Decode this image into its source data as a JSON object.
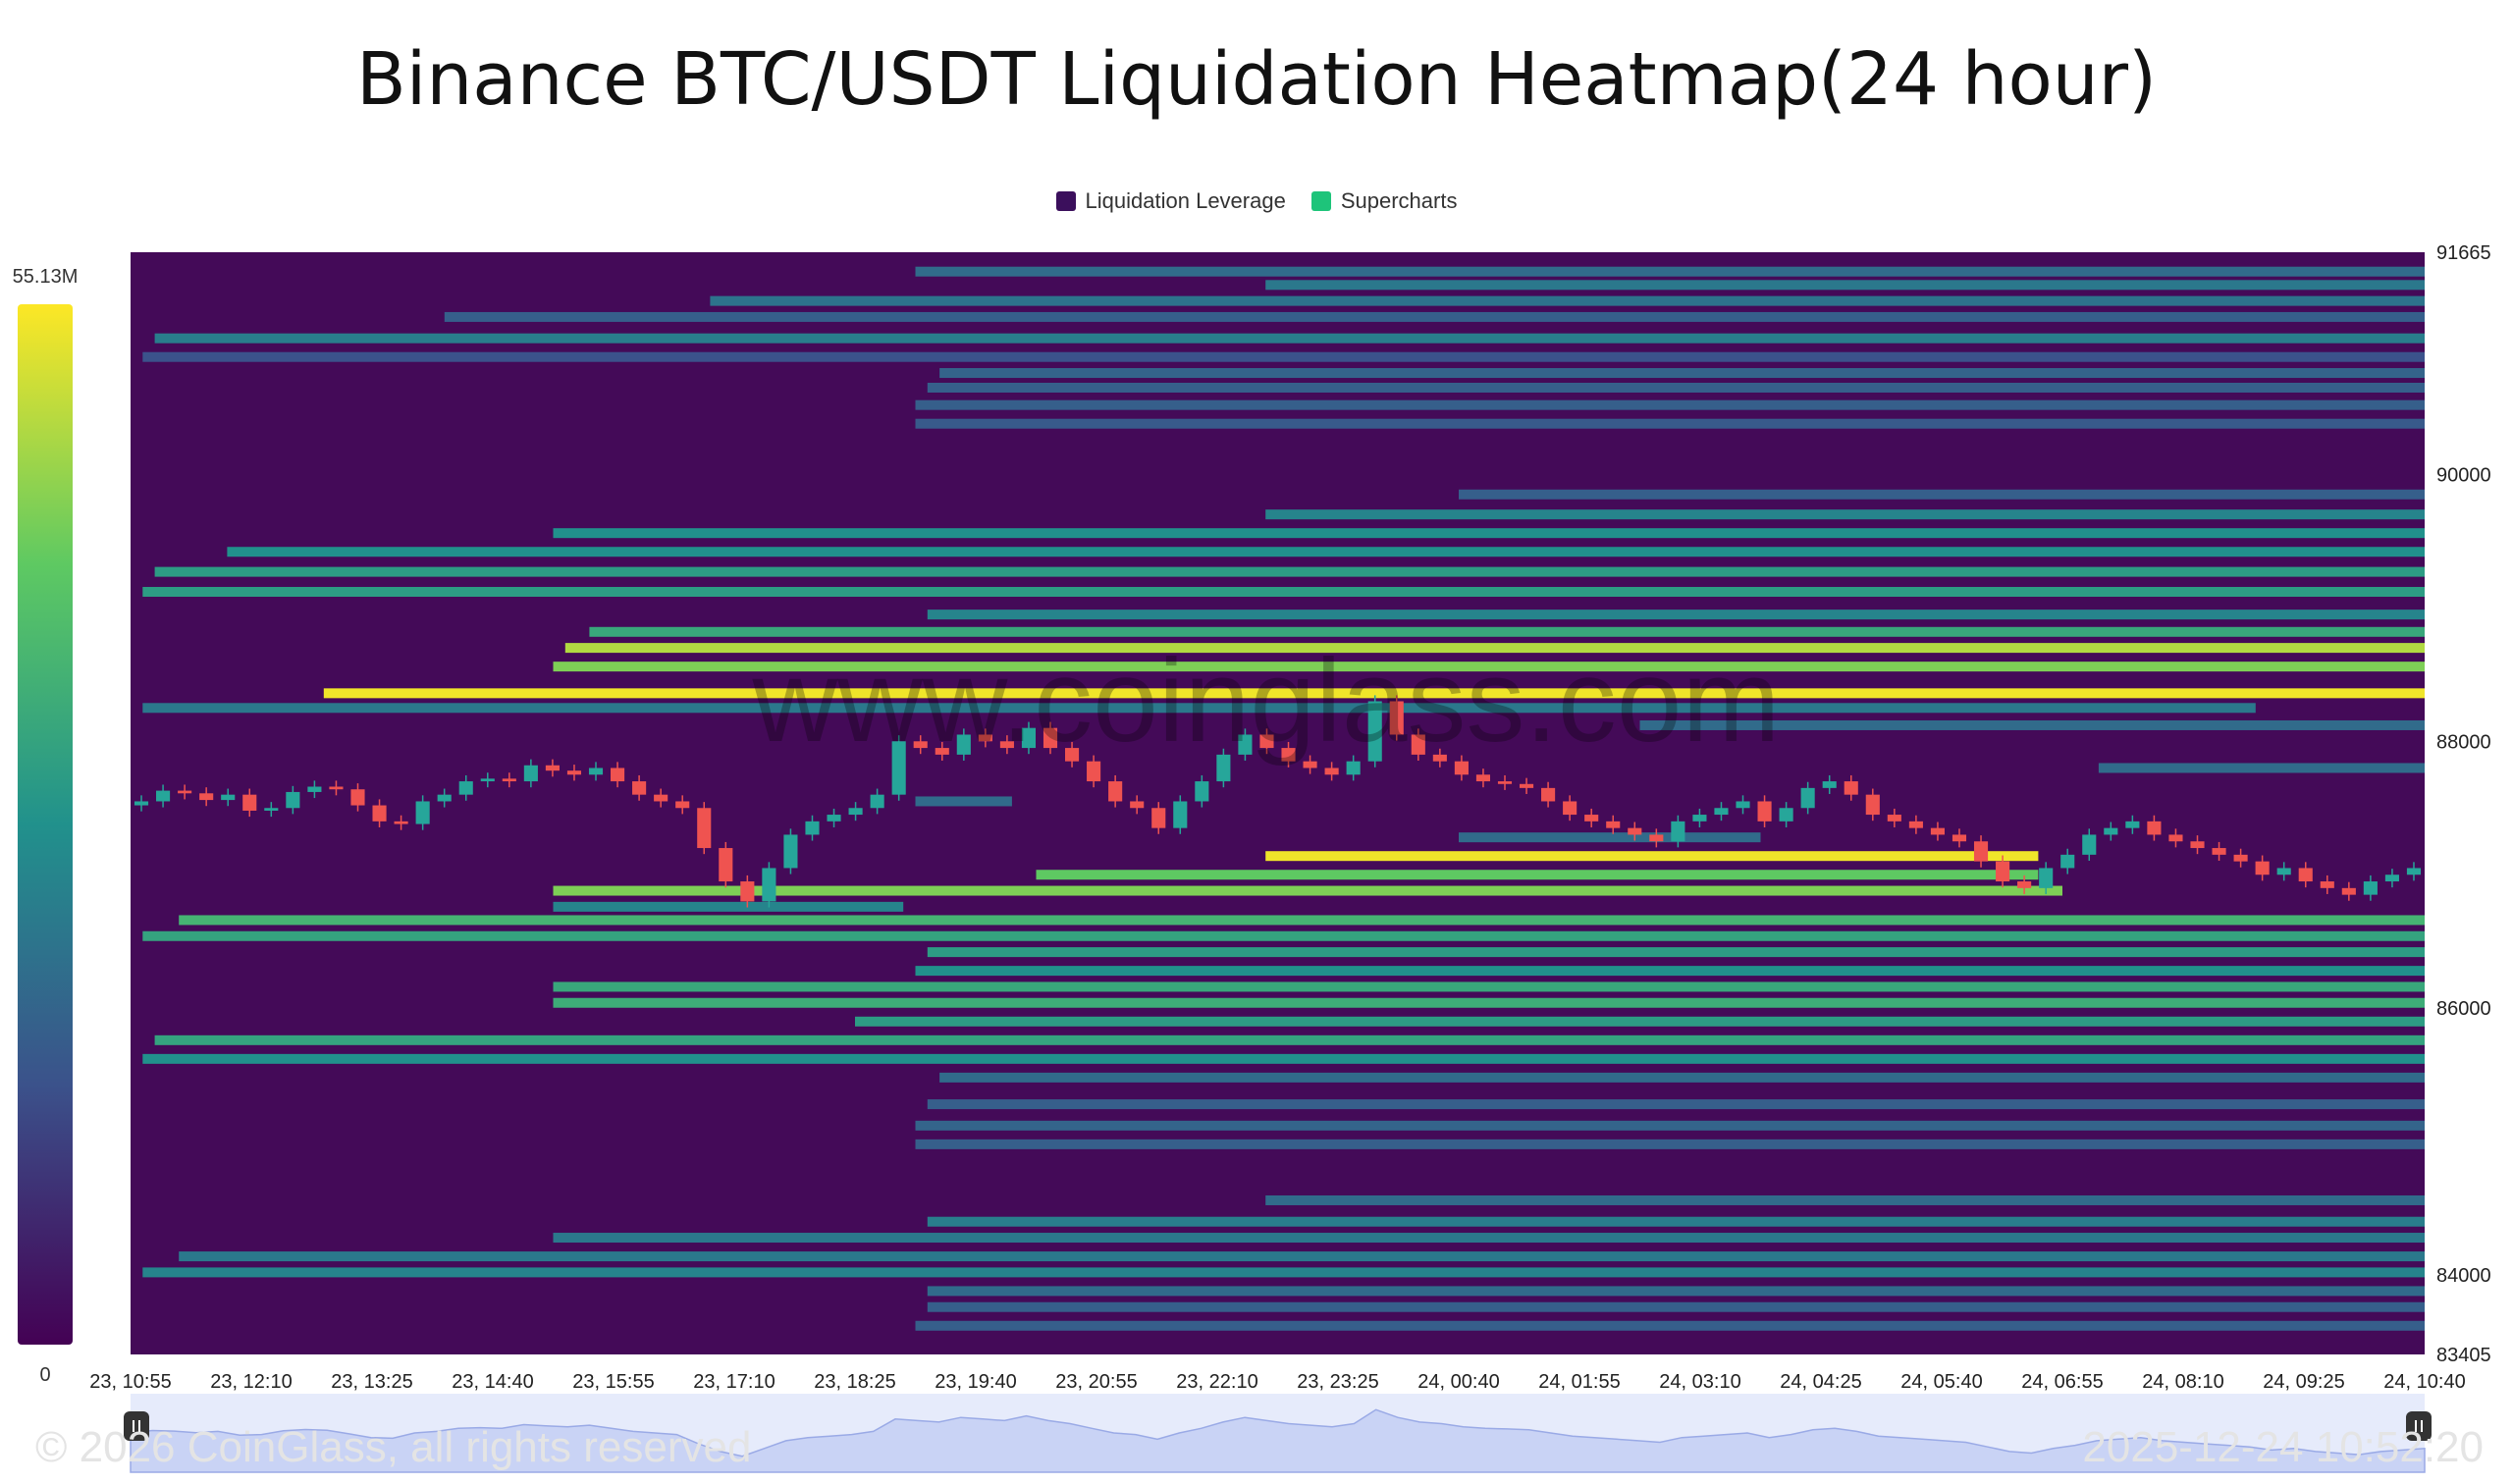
{
  "title": "Binance BTC/USDT Liquidation Heatmap(24 hour)",
  "legend": [
    {
      "label": "Liquidation Leverage",
      "color": "#3b0f5c"
    },
    {
      "label": "Supercharts",
      "color": "#1ec47a"
    }
  ],
  "watermark": "www.coinglass.com",
  "footer": {
    "copyright": "© 2026 CoinGlass, all rights reserved",
    "timestamp": "2025-12-24 10:52:20"
  },
  "chart_data": {
    "type": "heatmap",
    "title": "Binance BTC/USDT Liquidation Heatmap(24 hour)",
    "x_tick_labels": [
      "23, 10:55",
      "23, 12:10",
      "23, 13:25",
      "23, 14:40",
      "23, 15:55",
      "23, 17:10",
      "23, 18:25",
      "23, 19:40",
      "23, 20:55",
      "23, 22:10",
      "23, 23:25",
      "24, 00:40",
      "24, 01:55",
      "24, 03:10",
      "24, 04:25",
      "24, 05:40",
      "24, 06:55",
      "24, 08:10",
      "24, 09:25",
      "24, 10:40"
    ],
    "y_tick_labels": [
      "91665",
      "90000",
      "88000",
      "86000",
      "84000",
      "83405"
    ],
    "y_ticks": [
      91665,
      90000,
      88000,
      86000,
      84000,
      83405
    ],
    "ylim": [
      83405,
      91665
    ],
    "x_count": 20,
    "colorbar": {
      "max_label": "55.13M",
      "min_label": "0",
      "max": 55.13,
      "min": 0,
      "unit": "M"
    },
    "colors": {
      "background": "#440a58",
      "scale": [
        "#440154",
        "#3b528b",
        "#21918c",
        "#5ec962",
        "#fde725"
      ],
      "candle_up": "#26a69a",
      "candle_down": "#ef5350"
    },
    "heat_bands": [
      {
        "price": 91520,
        "start": 6.5,
        "end": 19,
        "intensity": 0.35
      },
      {
        "price": 91420,
        "start": 9.4,
        "end": 19,
        "intensity": 0.4
      },
      {
        "price": 91300,
        "start": 4.8,
        "end": 19,
        "intensity": 0.38
      },
      {
        "price": 91180,
        "start": 2.6,
        "end": 19,
        "intensity": 0.3
      },
      {
        "price": 91020,
        "start": 0.2,
        "end": 19,
        "intensity": 0.42
      },
      {
        "price": 90880,
        "start": 0.1,
        "end": 19,
        "intensity": 0.25
      },
      {
        "price": 90760,
        "start": 6.7,
        "end": 19,
        "intensity": 0.32
      },
      {
        "price": 90650,
        "start": 6.6,
        "end": 19,
        "intensity": 0.3
      },
      {
        "price": 90520,
        "start": 6.5,
        "end": 19,
        "intensity": 0.3
      },
      {
        "price": 90380,
        "start": 6.5,
        "end": 19,
        "intensity": 0.28
      },
      {
        "price": 89850,
        "start": 11.0,
        "end": 19,
        "intensity": 0.3
      },
      {
        "price": 89700,
        "start": 9.4,
        "end": 19,
        "intensity": 0.45
      },
      {
        "price": 89560,
        "start": 3.5,
        "end": 19,
        "intensity": 0.5
      },
      {
        "price": 89420,
        "start": 0.8,
        "end": 19,
        "intensity": 0.5
      },
      {
        "price": 89270,
        "start": 0.2,
        "end": 19,
        "intensity": 0.55
      },
      {
        "price": 89120,
        "start": 0.1,
        "end": 19,
        "intensity": 0.55
      },
      {
        "price": 88950,
        "start": 6.6,
        "end": 19,
        "intensity": 0.45
      },
      {
        "price": 88820,
        "start": 3.8,
        "end": 19,
        "intensity": 0.6
      },
      {
        "price": 88700,
        "start": 3.6,
        "end": 19,
        "intensity": 0.88
      },
      {
        "price": 88560,
        "start": 3.5,
        "end": 19,
        "intensity": 0.8
      },
      {
        "price": 88360,
        "start": 1.6,
        "end": 19,
        "intensity": 0.98
      },
      {
        "price": 88250,
        "start": 0.1,
        "end": 17.6,
        "intensity": 0.4
      },
      {
        "price": 88120,
        "start": 12.5,
        "end": 19,
        "intensity": 0.35
      },
      {
        "price": 87800,
        "start": 16.3,
        "end": 19,
        "intensity": 0.35
      },
      {
        "price": 87550,
        "start": 6.5,
        "end": 7.3,
        "intensity": 0.35
      },
      {
        "price": 87280,
        "start": 11.0,
        "end": 13.5,
        "intensity": 0.35
      },
      {
        "price": 87140,
        "start": 9.4,
        "end": 15.8,
        "intensity": 0.98
      },
      {
        "price": 87000,
        "start": 7.5,
        "end": 15.8,
        "intensity": 0.75
      },
      {
        "price": 86880,
        "start": 3.5,
        "end": 16.0,
        "intensity": 0.8
      },
      {
        "price": 86760,
        "start": 3.5,
        "end": 6.4,
        "intensity": 0.45
      },
      {
        "price": 86660,
        "start": 0.4,
        "end": 19,
        "intensity": 0.65
      },
      {
        "price": 86540,
        "start": 0.1,
        "end": 19,
        "intensity": 0.58
      },
      {
        "price": 86420,
        "start": 6.6,
        "end": 19,
        "intensity": 0.55
      },
      {
        "price": 86280,
        "start": 6.5,
        "end": 19,
        "intensity": 0.5
      },
      {
        "price": 86160,
        "start": 3.5,
        "end": 19,
        "intensity": 0.6
      },
      {
        "price": 86040,
        "start": 3.5,
        "end": 19,
        "intensity": 0.62
      },
      {
        "price": 85900,
        "start": 6.0,
        "end": 19,
        "intensity": 0.55
      },
      {
        "price": 85760,
        "start": 0.2,
        "end": 19,
        "intensity": 0.58
      },
      {
        "price": 85620,
        "start": 0.1,
        "end": 19,
        "intensity": 0.5
      },
      {
        "price": 85480,
        "start": 6.7,
        "end": 19,
        "intensity": 0.35
      },
      {
        "price": 85280,
        "start": 6.6,
        "end": 19,
        "intensity": 0.3
      },
      {
        "price": 85120,
        "start": 6.5,
        "end": 19,
        "intensity": 0.32
      },
      {
        "price": 84980,
        "start": 6.5,
        "end": 19,
        "intensity": 0.3
      },
      {
        "price": 84560,
        "start": 9.4,
        "end": 19,
        "intensity": 0.35
      },
      {
        "price": 84400,
        "start": 6.6,
        "end": 19,
        "intensity": 0.42
      },
      {
        "price": 84280,
        "start": 3.5,
        "end": 19,
        "intensity": 0.4
      },
      {
        "price": 84140,
        "start": 0.4,
        "end": 19,
        "intensity": 0.4
      },
      {
        "price": 84020,
        "start": 0.1,
        "end": 19,
        "intensity": 0.45
      },
      {
        "price": 83880,
        "start": 6.6,
        "end": 19,
        "intensity": 0.35
      },
      {
        "price": 83760,
        "start": 6.6,
        "end": 19,
        "intensity": 0.3
      },
      {
        "price": 83620,
        "start": 6.5,
        "end": 19,
        "intensity": 0.3
      }
    ],
    "price_series": [
      87550,
      87630,
      87610,
      87560,
      87600,
      87480,
      87500,
      87620,
      87660,
      87640,
      87520,
      87400,
      87380,
      87550,
      87600,
      87700,
      87720,
      87700,
      87820,
      87780,
      87750,
      87800,
      87700,
      87600,
      87550,
      87500,
      87200,
      86950,
      86800,
      87050,
      87300,
      87400,
      87450,
      87500,
      87600,
      88000,
      87950,
      87900,
      88050,
      88000,
      87950,
      88100,
      87950,
      87850,
      87700,
      87550,
      87500,
      87350,
      87550,
      87700,
      87900,
      88050,
      87950,
      87850,
      87800,
      87750,
      87850,
      88300,
      88050,
      87900,
      87850,
      87750,
      87700,
      87680,
      87650,
      87550,
      87450,
      87400,
      87350,
      87300,
      87250,
      87400,
      87450,
      87500,
      87550,
      87400,
      87500,
      87650,
      87700,
      87600,
      87450,
      87400,
      87350,
      87300,
      87250,
      87100,
      86950,
      86900,
      87050,
      87150,
      87300,
      87350,
      87400,
      87300,
      87250,
      87200,
      87150,
      87100,
      87000,
      87050,
      86950,
      86900,
      86850,
      86950,
      87000,
      87050
    ]
  }
}
